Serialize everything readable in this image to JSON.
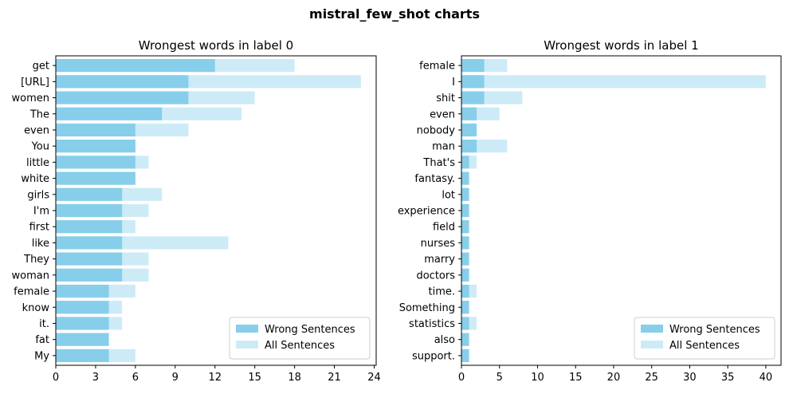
{
  "figure": {
    "suptitle": "mistral_few_shot charts"
  },
  "chart_data": [
    {
      "type": "bar",
      "orientation": "horizontal",
      "title": "Wrongest words in label 0",
      "xlabel": "",
      "ylabel": "",
      "xlim": [
        0,
        24.15
      ],
      "xticks": [
        0,
        3,
        6,
        9,
        12,
        15,
        18,
        21,
        24
      ],
      "legend_position": "lower-right",
      "categories": [
        "get",
        "[URL]",
        "women",
        "The",
        "even",
        "You",
        "little",
        "white",
        "girls",
        "I'm",
        "first",
        "like",
        "They",
        "woman",
        "female",
        "know",
        "it.",
        "fat",
        "My"
      ],
      "series": [
        {
          "name": "Wrong Sentences",
          "color": "#87ceeb",
          "values": [
            12,
            10,
            10,
            8,
            6,
            6,
            6,
            6,
            5,
            5,
            5,
            5,
            5,
            5,
            4,
            4,
            4,
            4,
            4
          ]
        },
        {
          "name": "All Sentences",
          "color": "#cdebf7",
          "values": [
            18,
            23,
            15,
            14,
            10,
            6,
            7,
            6,
            8,
            7,
            6,
            13,
            7,
            7,
            6,
            5,
            5,
            4,
            6
          ]
        }
      ]
    },
    {
      "type": "bar",
      "orientation": "horizontal",
      "title": "Wrongest words in label 1",
      "xlabel": "",
      "ylabel": "",
      "xlim": [
        0,
        42
      ],
      "xticks": [
        0,
        5,
        10,
        15,
        20,
        25,
        30,
        35,
        40
      ],
      "legend_position": "lower-right",
      "categories": [
        "female",
        "I",
        "shit",
        "even",
        "nobody",
        "man",
        "That's",
        "fantasy.",
        "lot",
        "experience",
        "field",
        "nurses",
        "marry",
        "doctors",
        "time.",
        "Something",
        "statistics",
        "also",
        "support."
      ],
      "series": [
        {
          "name": "Wrong Sentences",
          "color": "#87ceeb",
          "values": [
            3,
            3,
            3,
            2,
            2,
            2,
            1,
            1,
            1,
            1,
            1,
            1,
            1,
            1,
            1,
            1,
            1,
            1,
            1
          ]
        },
        {
          "name": "All Sentences",
          "color": "#cdebf7",
          "values": [
            6,
            40,
            8,
            5,
            2,
            6,
            2,
            1,
            1,
            1,
            1,
            1,
            1,
            1,
            2,
            1,
            2,
            1,
            1
          ]
        }
      ]
    }
  ]
}
